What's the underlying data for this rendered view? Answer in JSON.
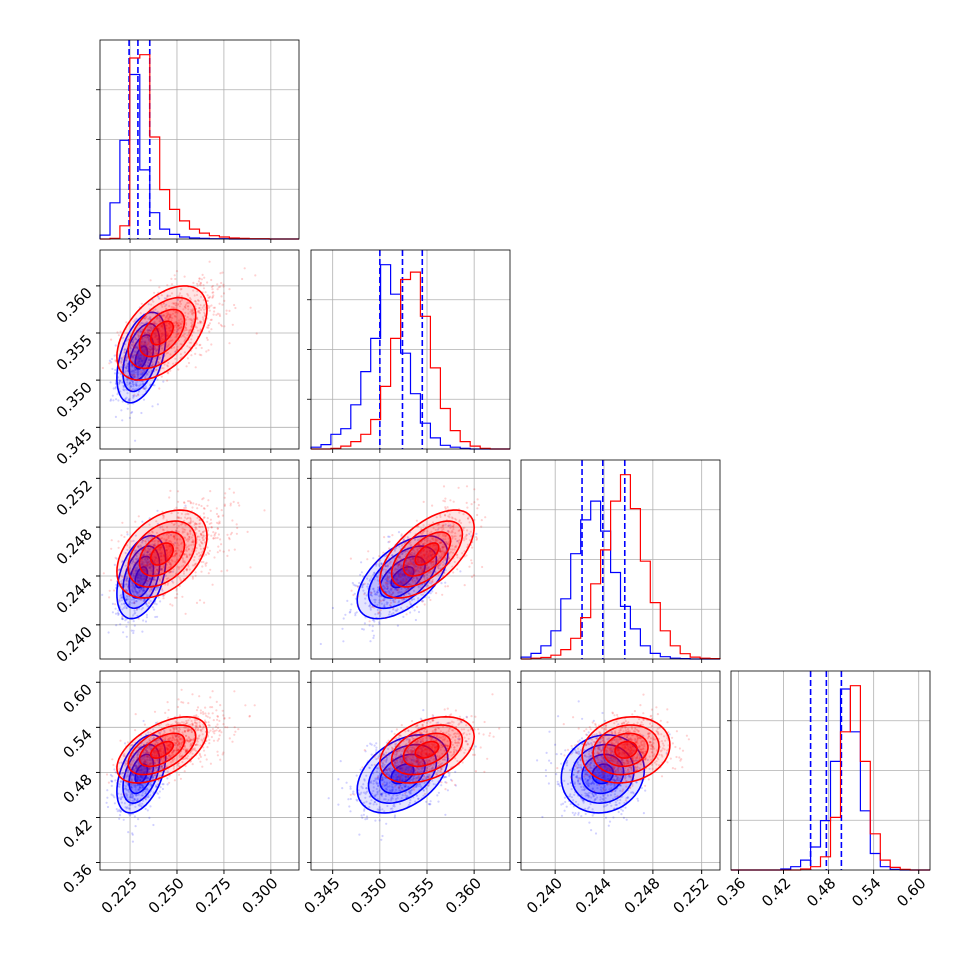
{
  "chart_data": {
    "type": "corner",
    "title": "",
    "grid": true,
    "colors": {
      "series_a": "#0000ff",
      "series_b": "#ff0000"
    },
    "params": [
      {
        "range": [
          0.209,
          0.315
        ],
        "ticks": [
          0.225,
          0.25,
          0.275,
          0.3
        ],
        "tick_labels": [
          "0.225",
          "0.250",
          "0.275",
          "0.300"
        ]
      },
      {
        "range": [
          0.3427,
          0.3638
        ],
        "ticks": [
          0.345,
          0.35,
          0.355,
          0.36
        ],
        "tick_labels": [
          "0.345",
          "0.350",
          "0.355",
          "0.360"
        ]
      },
      {
        "range": [
          0.2372,
          0.2535
        ],
        "ticks": [
          0.24,
          0.244,
          0.248,
          0.252
        ],
        "tick_labels": [
          "0.240",
          "0.244",
          "0.248",
          "0.252"
        ]
      },
      {
        "range": [
          0.35,
          0.615
        ],
        "ticks": [
          0.36,
          0.42,
          0.48,
          0.54,
          0.6
        ],
        "tick_labels": [
          "0.36",
          "0.42",
          "0.48",
          "0.54",
          "0.60"
        ]
      }
    ],
    "series": [
      {
        "color": "blue",
        "means": [
          0.231,
          0.3524,
          0.2439,
          0.478
        ],
        "sds": [
          0.0065,
          0.0024,
          0.0017,
          0.026
        ],
        "corr": [
          [
            1,
            0.45,
            0.4,
            0.45
          ],
          [
            0.45,
            1,
            0.55,
            0.4
          ],
          [
            0.4,
            0.55,
            1,
            0.1
          ],
          [
            0.45,
            0.4,
            0.1,
            1
          ]
        ],
        "quantiles": [
          [
            0.2245,
            0.2292,
            0.2355
          ],
          [
            0.35,
            0.3524,
            0.3545
          ],
          [
            0.2422,
            0.2439,
            0.2457
          ],
          [
            0.456,
            0.477,
            0.497
          ]
        ],
        "hist_counts": [
          [
            12,
            110,
            300,
            500,
            210,
            80,
            30,
            14,
            6,
            3,
            2,
            1,
            1,
            0,
            0,
            0,
            0,
            0,
            0,
            0
          ],
          [
            5,
            12,
            40,
            55,
            120,
            210,
            300,
            500,
            420,
            260,
            150,
            70,
            30,
            10,
            5,
            2,
            0,
            0,
            0,
            0
          ],
          [
            5,
            15,
            35,
            75,
            160,
            280,
            370,
            420,
            340,
            230,
            140,
            80,
            35,
            15,
            6,
            2,
            1,
            0,
            0,
            0
          ],
          [
            0,
            0,
            0,
            0,
            0,
            3,
            10,
            30,
            70,
            150,
            330,
            550,
            420,
            180,
            50,
            10,
            2,
            0,
            0,
            0
          ]
        ]
      },
      {
        "color": "red",
        "means": [
          0.242,
          0.355,
          0.2458,
          0.51
        ],
        "sds": [
          0.012,
          0.0025,
          0.0018,
          0.022
        ],
        "corr": [
          [
            1,
            0.5,
            0.4,
            0.55
          ],
          [
            0.5,
            1,
            0.6,
            0.4
          ],
          [
            0.4,
            0.6,
            1,
            0.15
          ],
          [
            0.55,
            0.4,
            0.15,
            1
          ]
        ],
        "quantiles": [],
        "hist_counts": [
          [
            0,
            2,
            40,
            550,
            560,
            310,
            150,
            90,
            55,
            30,
            18,
            10,
            6,
            3,
            2,
            1,
            1,
            0,
            0,
            0
          ],
          [
            0,
            0,
            2,
            8,
            20,
            40,
            80,
            170,
            300,
            460,
            480,
            360,
            220,
            110,
            50,
            20,
            8,
            2,
            0,
            0
          ],
          [
            0,
            2,
            4,
            10,
            25,
            55,
            110,
            200,
            290,
            420,
            490,
            400,
            260,
            150,
            75,
            35,
            14,
            5,
            2,
            1
          ],
          [
            0,
            0,
            0,
            0,
            0,
            0,
            0,
            3,
            10,
            40,
            160,
            420,
            560,
            330,
            110,
            30,
            8,
            2,
            0,
            0
          ]
        ]
      }
    ]
  }
}
